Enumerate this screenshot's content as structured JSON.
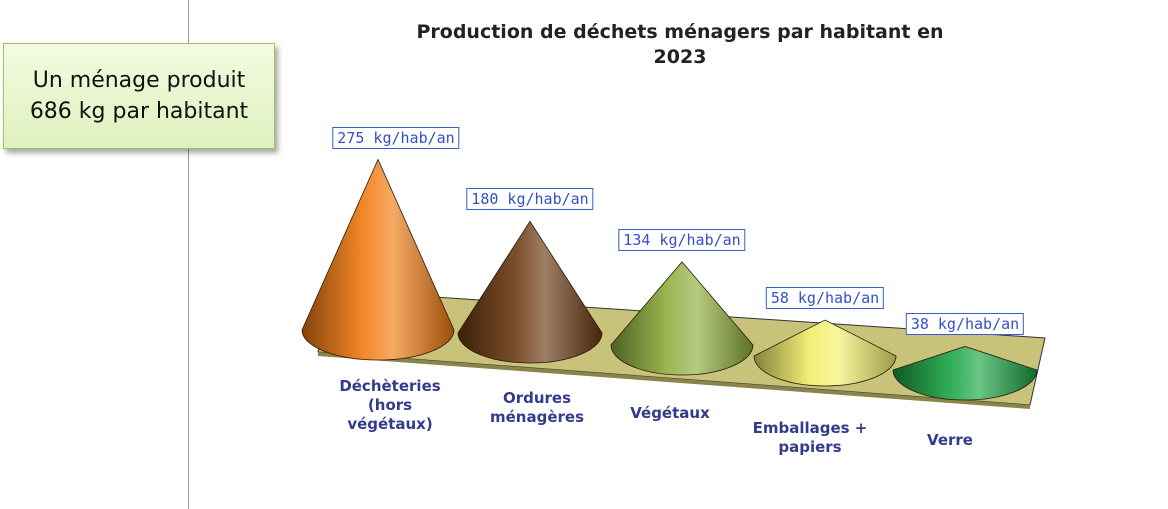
{
  "chart_data": {
    "type": "cone",
    "title": "Production de déchets ménagers par habitant en 2023",
    "annotation": "Un ménage produit 686 kg par habitant",
    "categories": [
      "Déchèteries (hors végétaux)",
      "Ordures ménagères",
      "Végétaux",
      "Emballages + papiers",
      "Verre"
    ],
    "values": [
      275,
      180,
      134,
      58,
      38
    ],
    "value_labels": [
      "275 kg/hab/an",
      "180 kg/hab/an",
      "134 kg/hab/an",
      "58 kg/hab/an",
      "38 kg/hab/an"
    ],
    "colors": [
      "#f07a10",
      "#6b3a12",
      "#8fae3c",
      "#f2ee6a",
      "#1aa544"
    ]
  }
}
